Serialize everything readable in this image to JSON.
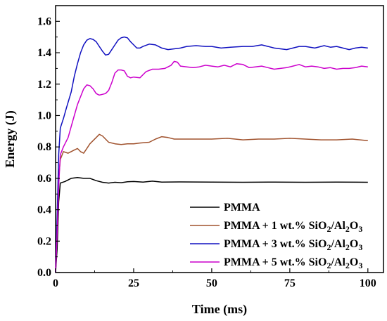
{
  "chart_data": {
    "type": "line",
    "xlabel": "Time (ms)",
    "ylabel": "Energy (J)",
    "xlim": [
      0,
      105
    ],
    "ylim": [
      0,
      1.7
    ],
    "xticks": [
      0,
      25,
      50,
      75,
      100
    ],
    "yticks": [
      0.0,
      0.2,
      0.4,
      0.6,
      0.8,
      1.0,
      1.2,
      1.4,
      1.6
    ],
    "xtick_labels": [
      "0",
      "25",
      "50",
      "75",
      "100"
    ],
    "ytick_labels": [
      "0.0",
      "0.2",
      "0.4",
      "0.6",
      "0.8",
      "1.0",
      "1.2",
      "1.4",
      "1.6"
    ],
    "grid": false,
    "legend_position": "lower-right",
    "series": [
      {
        "name": "PMMA",
        "label_parts": [
          {
            "t": "PMMA"
          }
        ],
        "color": "#000000",
        "points": [
          [
            0,
            0
          ],
          [
            0.5,
            0.15
          ],
          [
            1,
            0.45
          ],
          [
            1.5,
            0.57
          ],
          [
            3,
            0.58
          ],
          [
            5,
            0.6
          ],
          [
            7,
            0.605
          ],
          [
            9,
            0.6
          ],
          [
            11,
            0.6
          ],
          [
            13,
            0.585
          ],
          [
            15,
            0.575
          ],
          [
            17,
            0.57
          ],
          [
            19,
            0.575
          ],
          [
            21,
            0.572
          ],
          [
            23,
            0.578
          ],
          [
            25,
            0.58
          ],
          [
            28,
            0.576
          ],
          [
            31,
            0.582
          ],
          [
            34,
            0.576
          ],
          [
            40,
            0.577
          ],
          [
            50,
            0.576
          ],
          [
            60,
            0.575
          ],
          [
            70,
            0.576
          ],
          [
            80,
            0.575
          ],
          [
            90,
            0.576
          ],
          [
            100,
            0.575
          ]
        ]
      },
      {
        "name": "PMMA + 1 wt.% SiO2/Al2O3",
        "label_parts": [
          {
            "t": "PMMA + 1 wt.% SiO"
          },
          {
            "t": "2",
            "sub": true
          },
          {
            "t": "/Al"
          },
          {
            "t": "2",
            "sub": true
          },
          {
            "t": "O"
          },
          {
            "t": "3",
            "sub": true
          }
        ],
        "color": "#a0522d",
        "points": [
          [
            0,
            0
          ],
          [
            0.5,
            0.3
          ],
          [
            1,
            0.6
          ],
          [
            1.5,
            0.72
          ],
          [
            2.5,
            0.77
          ],
          [
            4,
            0.76
          ],
          [
            6,
            0.78
          ],
          [
            7,
            0.79
          ],
          [
            8,
            0.77
          ],
          [
            9,
            0.76
          ],
          [
            10,
            0.79
          ],
          [
            11,
            0.82
          ],
          [
            12,
            0.84
          ],
          [
            13,
            0.86
          ],
          [
            14,
            0.88
          ],
          [
            15,
            0.87
          ],
          [
            16,
            0.85
          ],
          [
            17,
            0.83
          ],
          [
            19,
            0.82
          ],
          [
            21,
            0.815
          ],
          [
            23,
            0.82
          ],
          [
            25,
            0.82
          ],
          [
            27,
            0.825
          ],
          [
            30,
            0.83
          ],
          [
            32,
            0.85
          ],
          [
            34,
            0.865
          ],
          [
            36,
            0.86
          ],
          [
            38,
            0.85
          ],
          [
            42,
            0.85
          ],
          [
            46,
            0.85
          ],
          [
            50,
            0.85
          ],
          [
            55,
            0.855
          ],
          [
            60,
            0.845
          ],
          [
            65,
            0.85
          ],
          [
            70,
            0.85
          ],
          [
            75,
            0.855
          ],
          [
            80,
            0.85
          ],
          [
            85,
            0.845
          ],
          [
            90,
            0.845
          ],
          [
            95,
            0.85
          ],
          [
            100,
            0.84
          ]
        ]
      },
      {
        "name": "PMMA + 3 wt.% SiO2/Al2O3",
        "label_parts": [
          {
            "t": "PMMA + 3 wt.% SiO"
          },
          {
            "t": "2",
            "sub": true
          },
          {
            "t": "/Al"
          },
          {
            "t": "2",
            "sub": true
          },
          {
            "t": "O"
          },
          {
            "t": "3",
            "sub": true
          }
        ],
        "color": "#1010c0",
        "points": [
          [
            0,
            0
          ],
          [
            0.5,
            0.35
          ],
          [
            1,
            0.75
          ],
          [
            1.5,
            0.92
          ],
          [
            2.5,
            0.98
          ],
          [
            3.5,
            1.05
          ],
          [
            5,
            1.15
          ],
          [
            6,
            1.25
          ],
          [
            7,
            1.33
          ],
          [
            8,
            1.4
          ],
          [
            9,
            1.45
          ],
          [
            10,
            1.48
          ],
          [
            11,
            1.49
          ],
          [
            12,
            1.485
          ],
          [
            13,
            1.47
          ],
          [
            14,
            1.44
          ],
          [
            15,
            1.41
          ],
          [
            16,
            1.385
          ],
          [
            17,
            1.39
          ],
          [
            18,
            1.42
          ],
          [
            19,
            1.45
          ],
          [
            20,
            1.48
          ],
          [
            21,
            1.495
          ],
          [
            22,
            1.5
          ],
          [
            23,
            1.495
          ],
          [
            24,
            1.47
          ],
          [
            25,
            1.45
          ],
          [
            26,
            1.43
          ],
          [
            27,
            1.43
          ],
          [
            28,
            1.44
          ],
          [
            30,
            1.455
          ],
          [
            32,
            1.45
          ],
          [
            34,
            1.43
          ],
          [
            36,
            1.42
          ],
          [
            38,
            1.425
          ],
          [
            40,
            1.43
          ],
          [
            42,
            1.44
          ],
          [
            45,
            1.445
          ],
          [
            48,
            1.44
          ],
          [
            50,
            1.44
          ],
          [
            53,
            1.43
          ],
          [
            56,
            1.435
          ],
          [
            60,
            1.44
          ],
          [
            63,
            1.44
          ],
          [
            66,
            1.45
          ],
          [
            68,
            1.44
          ],
          [
            70,
            1.43
          ],
          [
            72,
            1.425
          ],
          [
            74,
            1.42
          ],
          [
            76,
            1.43
          ],
          [
            78,
            1.44
          ],
          [
            80,
            1.44
          ],
          [
            83,
            1.43
          ],
          [
            86,
            1.445
          ],
          [
            88,
            1.435
          ],
          [
            90,
            1.44
          ],
          [
            92,
            1.43
          ],
          [
            94,
            1.42
          ],
          [
            96,
            1.43
          ],
          [
            98,
            1.435
          ],
          [
            100,
            1.43
          ]
        ]
      },
      {
        "name": "PMMA + 5 wt.% SiO2/Al2O3",
        "label_parts": [
          {
            "t": "PMMA + 5 wt.% SiO"
          },
          {
            "t": "2",
            "sub": true
          },
          {
            "t": "/Al"
          },
          {
            "t": "2",
            "sub": true
          },
          {
            "t": "O"
          },
          {
            "t": "3",
            "sub": true
          }
        ],
        "color": "#cc00cc",
        "points": [
          [
            0,
            0
          ],
          [
            0.5,
            0.25
          ],
          [
            1,
            0.55
          ],
          [
            1.5,
            0.75
          ],
          [
            2.5,
            0.8
          ],
          [
            4,
            0.86
          ],
          [
            5,
            0.93
          ],
          [
            6,
            1.0
          ],
          [
            7,
            1.07
          ],
          [
            8,
            1.12
          ],
          [
            9,
            1.17
          ],
          [
            10,
            1.195
          ],
          [
            11,
            1.19
          ],
          [
            12,
            1.17
          ],
          [
            13,
            1.14
          ],
          [
            14,
            1.13
          ],
          [
            15,
            1.135
          ],
          [
            16,
            1.14
          ],
          [
            17,
            1.16
          ],
          [
            18,
            1.21
          ],
          [
            19,
            1.27
          ],
          [
            20,
            1.29
          ],
          [
            21,
            1.29
          ],
          [
            22,
            1.285
          ],
          [
            23,
            1.25
          ],
          [
            24,
            1.24
          ],
          [
            25,
            1.245
          ],
          [
            27,
            1.24
          ],
          [
            29,
            1.28
          ],
          [
            31,
            1.295
          ],
          [
            33,
            1.295
          ],
          [
            35,
            1.3
          ],
          [
            37,
            1.32
          ],
          [
            38,
            1.345
          ],
          [
            39,
            1.34
          ],
          [
            40,
            1.315
          ],
          [
            42,
            1.31
          ],
          [
            44,
            1.305
          ],
          [
            46,
            1.31
          ],
          [
            48,
            1.32
          ],
          [
            50,
            1.315
          ],
          [
            52,
            1.31
          ],
          [
            54,
            1.32
          ],
          [
            56,
            1.31
          ],
          [
            58,
            1.33
          ],
          [
            60,
            1.325
          ],
          [
            62,
            1.305
          ],
          [
            64,
            1.31
          ],
          [
            66,
            1.315
          ],
          [
            68,
            1.305
          ],
          [
            70,
            1.295
          ],
          [
            72,
            1.3
          ],
          [
            74,
            1.305
          ],
          [
            76,
            1.315
          ],
          [
            78,
            1.325
          ],
          [
            80,
            1.31
          ],
          [
            82,
            1.315
          ],
          [
            84,
            1.31
          ],
          [
            86,
            1.3
          ],
          [
            88,
            1.305
          ],
          [
            90,
            1.295
          ],
          [
            92,
            1.3
          ],
          [
            94,
            1.3
          ],
          [
            96,
            1.305
          ],
          [
            98,
            1.315
          ],
          [
            100,
            1.31
          ]
        ]
      }
    ]
  }
}
